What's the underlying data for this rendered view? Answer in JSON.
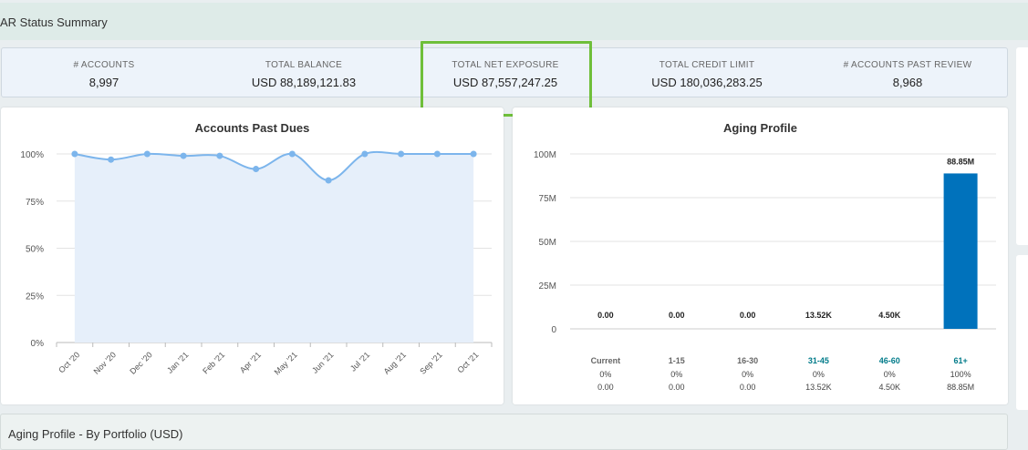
{
  "header": {
    "title": "AR Status Summary"
  },
  "kpis": [
    {
      "label": "# ACCOUNTS",
      "value": "8,997"
    },
    {
      "label": "TOTAL BALANCE",
      "value": "USD 88,189,121.83"
    },
    {
      "label": "TOTAL NET EXPOSURE",
      "value": "USD 87,557,247.25"
    },
    {
      "label": "TOTAL CREDIT LIMIT",
      "value": "USD 180,036,283.25"
    },
    {
      "label": "# ACCOUNTS PAST REVIEW",
      "value": "8,968"
    }
  ],
  "colors": {
    "highlight": "#6fbf3a",
    "line": "#7cb5ec",
    "area": "#e6effa",
    "bar": "#0072bc",
    "bucket_link": "#007b8a"
  },
  "chart_data": [
    {
      "type": "area",
      "title": "Accounts Past Dues",
      "categories": [
        "Oct '20",
        "Nov '20",
        "Dec '20",
        "Jan '21",
        "Feb '21",
        "Apr '21",
        "May '21",
        "Jun '21",
        "Jul '21",
        "Aug '21",
        "Sep '21",
        "Oct '21"
      ],
      "y_tick_labels": [
        "0%",
        "25%",
        "50%",
        "75%",
        "100%"
      ],
      "ylim": [
        0,
        100
      ],
      "values": [
        100,
        97,
        100,
        99,
        99,
        92,
        100,
        86,
        100,
        100,
        100,
        100
      ],
      "grid": true
    },
    {
      "type": "bar",
      "title": "Aging Profile",
      "categories": [
        "Current",
        "1-15",
        "16-30",
        "31-45",
        "46-60",
        "61+"
      ],
      "values": [
        0,
        0,
        0,
        13520,
        4500,
        88850000
      ],
      "data_labels": [
        "0.00",
        "0.00",
        "0.00",
        "13.52K",
        "4.50K",
        "88.85M"
      ],
      "percentages": [
        "0%",
        "0%",
        "0%",
        "0%",
        "0%",
        "100%"
      ],
      "amounts": [
        "0.00",
        "0.00",
        "0.00",
        "13.52K",
        "4.50K",
        "88.85M"
      ],
      "linked": [
        false,
        false,
        false,
        true,
        true,
        true
      ],
      "y_tick_labels": [
        "0",
        "25M",
        "50M",
        "75M",
        "100M"
      ],
      "ylim": [
        0,
        100000000
      ],
      "grid": true
    }
  ],
  "bottom": {
    "title": "Aging Profile - By Portfolio (USD)"
  }
}
